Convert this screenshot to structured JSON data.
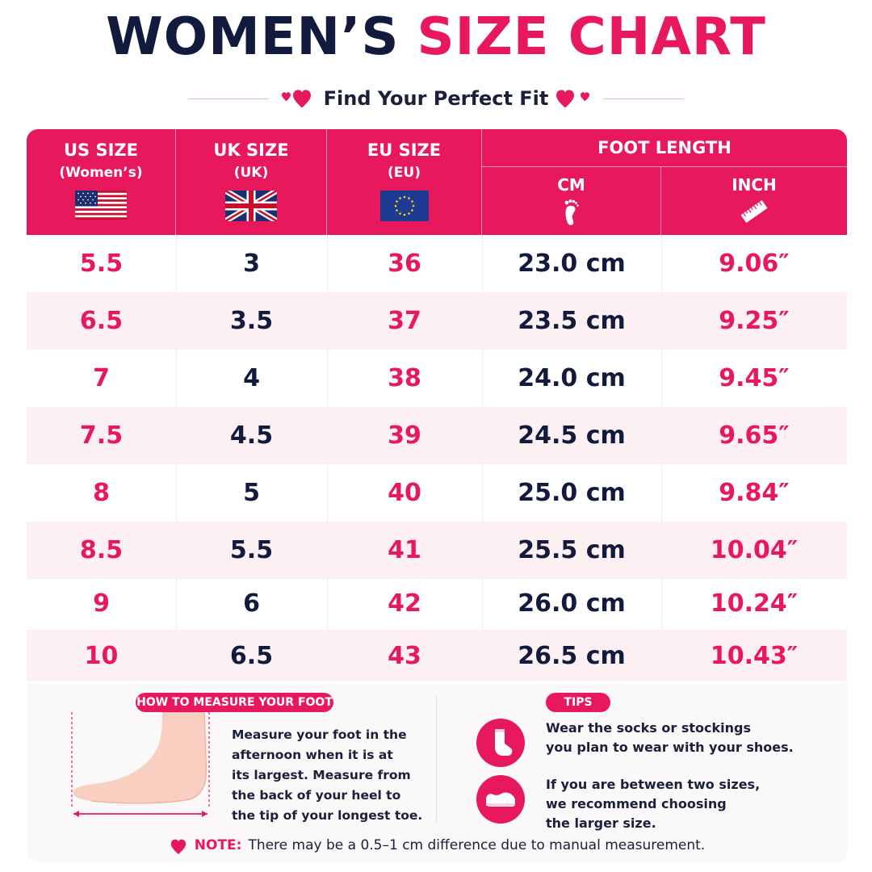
{
  "title": {
    "part1": "WOMEN’S",
    "part2": "SIZE CHART"
  },
  "subtitle": "Find Your Perfect Fit",
  "columns": {
    "us": {
      "label": "US SIZE",
      "sub": "(Women’s)",
      "flag": "us-flag-icon"
    },
    "uk": {
      "label": "UK SIZE",
      "sub": "(UK)",
      "flag": "uk-flag-icon"
    },
    "eu": {
      "label": "EU SIZE",
      "sub": "(EU)",
      "flag": "eu-flag-icon"
    },
    "foot": {
      "label": "FOOT LENGTH",
      "cm": "CM",
      "inch": "INCH",
      "cm_icon": "foot-icon",
      "inch_icon": "ruler-icon"
    }
  },
  "rows": [
    {
      "us": "5.5",
      "uk": "3",
      "eu": "36",
      "cm": "23.0 cm",
      "inch": "9.06″"
    },
    {
      "us": "6.5",
      "uk": "3.5",
      "eu": "37",
      "cm": "23.5 cm",
      "inch": "9.25″"
    },
    {
      "us": "7",
      "uk": "4",
      "eu": "38",
      "cm": "24.0 cm",
      "inch": "9.45″"
    },
    {
      "us": "7.5",
      "uk": "4.5",
      "eu": "39",
      "cm": "24.5 cm",
      "inch": "9.65″"
    },
    {
      "us": "8",
      "uk": "5",
      "eu": "40",
      "cm": "25.0 cm",
      "inch": "9.84″"
    },
    {
      "us": "8.5",
      "uk": "5.5",
      "eu": "41",
      "cm": "25.5 cm",
      "inch": "10.04″"
    },
    {
      "us": "9",
      "uk": "6",
      "eu": "42",
      "cm": "26.0 cm",
      "inch": "10.24″"
    },
    {
      "us": "10",
      "uk": "6.5",
      "eu": "43",
      "cm": "26.5 cm",
      "inch": "10.43″"
    }
  ],
  "measure": {
    "heading": "HOW TO MEASURE YOUR FOOT",
    "lines": [
      "Measure your foot in the",
      "afternoon when it is at",
      "its largest. Measure from",
      "the back of your heel to",
      "the tip of your longest toe."
    ]
  },
  "tips": {
    "heading": "TIPS",
    "items": [
      {
        "icon": "sock-icon",
        "lines": [
          "Wear the socks or stockings",
          "you plan to wear with your shoes."
        ]
      },
      {
        "icon": "shoe-icon",
        "lines": [
          "If you are between two sizes,",
          "we recommend choosing",
          "the larger size."
        ]
      }
    ]
  },
  "note": {
    "label": "NOTE:",
    "text": "There may be a 0.5–1 cm difference due to manual measurement."
  },
  "colors": {
    "accent": "#e8185c",
    "navy": "#121a3d",
    "row_alt": "#fdf0f3"
  }
}
